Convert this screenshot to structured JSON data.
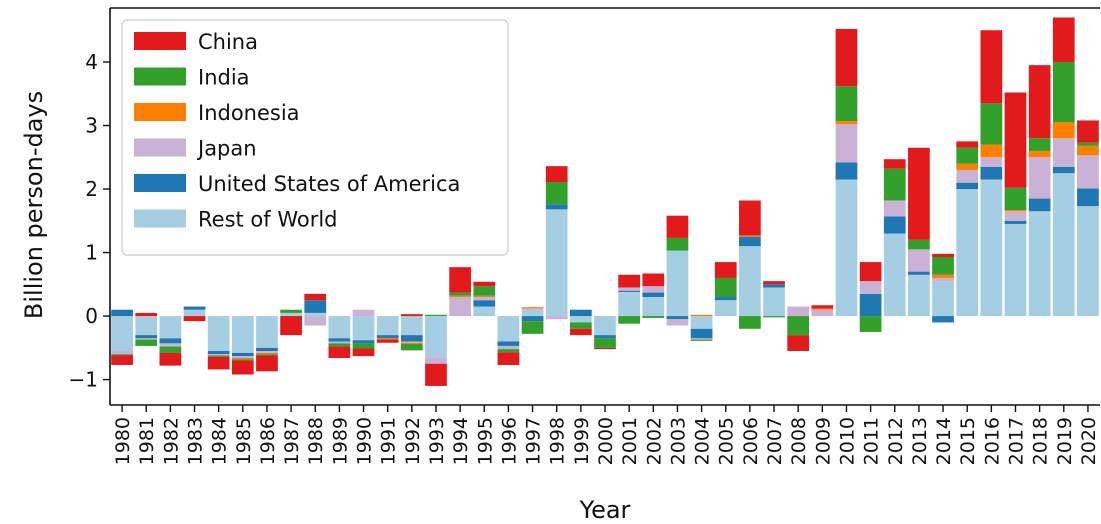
{
  "chart_data": {
    "type": "bar",
    "stacked": true,
    "diverging": true,
    "xlabel": "Year",
    "ylabel": "Billion person-days",
    "ylim": [
      -1.4,
      4.85
    ],
    "yticks": [
      -1,
      0,
      1,
      2,
      3,
      4
    ],
    "ytick_labels": [
      "−1",
      "0",
      "1",
      "2",
      "3",
      "4"
    ],
    "legend_position": "top-left",
    "categories": [
      "1980",
      "1981",
      "1982",
      "1983",
      "1984",
      "1985",
      "1986",
      "1987",
      "1988",
      "1989",
      "1990",
      "1991",
      "1992",
      "1993",
      "1994",
      "1995",
      "1996",
      "1997",
      "1998",
      "1999",
      "2000",
      "2001",
      "2002",
      "2003",
      "2004",
      "2005",
      "2006",
      "2007",
      "2008",
      "2009",
      "2010",
      "2011",
      "2012",
      "2013",
      "2014",
      "2015",
      "2016",
      "2017",
      "2018",
      "2019",
      "2020"
    ],
    "series": [
      {
        "name": "Rest of World",
        "color": "#a6cee3",
        "values": [
          -0.55,
          -0.3,
          -0.35,
          0.1,
          -0.55,
          -0.58,
          -0.5,
          0.05,
          0.05,
          -0.35,
          -0.38,
          -0.3,
          -0.3,
          -0.65,
          0.0,
          0.15,
          -0.4,
          0.1,
          1.68,
          -0.1,
          -0.3,
          0.38,
          0.3,
          1.03,
          -0.2,
          0.25,
          1.1,
          0.45,
          0.0,
          0.0,
          2.15,
          0.0,
          1.3,
          0.65,
          0.55,
          2.0,
          2.15,
          1.45,
          1.65,
          2.25,
          1.73
        ]
      },
      {
        "name": "United States of America",
        "color": "#1f78b4",
        "values": [
          0.1,
          -0.05,
          -0.08,
          0.05,
          -0.05,
          -0.05,
          -0.05,
          0.0,
          0.2,
          -0.05,
          -0.05,
          -0.05,
          -0.1,
          0.0,
          0.0,
          0.1,
          -0.07,
          -0.08,
          0.08,
          0.1,
          -0.05,
          0.02,
          0.07,
          -0.05,
          -0.15,
          0.05,
          0.15,
          0.05,
          0.0,
          0.0,
          0.27,
          0.35,
          0.27,
          0.05,
          -0.1,
          0.1,
          0.2,
          0.05,
          0.2,
          0.1,
          0.28
        ]
      },
      {
        "name": "Japan",
        "color": "#cab2d6",
        "values": [
          -0.05,
          -0.02,
          -0.05,
          0.0,
          -0.02,
          -0.03,
          -0.03,
          0.0,
          -0.15,
          -0.03,
          0.1,
          0.0,
          -0.02,
          -0.1,
          0.3,
          0.05,
          -0.05,
          0.02,
          -0.05,
          0.0,
          0.0,
          0.05,
          0.1,
          -0.1,
          -0.02,
          0.0,
          0.0,
          0.0,
          0.15,
          0.1,
          0.6,
          0.2,
          0.25,
          0.35,
          0.05,
          0.2,
          0.15,
          0.15,
          0.65,
          0.45,
          0.52
        ]
      },
      {
        "name": "Indonesia",
        "color": "#ff7f00",
        "values": [
          0.0,
          0.0,
          0.0,
          0.0,
          0.0,
          -0.02,
          -0.02,
          0.0,
          0.0,
          0.0,
          0.0,
          -0.02,
          -0.02,
          0.0,
          0.02,
          0.02,
          0.0,
          0.02,
          0.0,
          0.0,
          0.0,
          0.0,
          0.0,
          0.0,
          0.02,
          0.0,
          0.02,
          0.0,
          0.0,
          0.02,
          0.05,
          0.0,
          0.0,
          0.0,
          0.05,
          0.1,
          0.2,
          0.02,
          0.1,
          0.25,
          0.15
        ]
      },
      {
        "name": "India",
        "color": "#33a02c",
        "values": [
          -0.02,
          -0.1,
          -0.1,
          0.0,
          -0.02,
          -0.02,
          -0.02,
          0.05,
          0.0,
          -0.05,
          -0.08,
          0.0,
          -0.1,
          0.02,
          0.05,
          0.15,
          -0.05,
          -0.2,
          0.35,
          -0.1,
          -0.15,
          -0.12,
          -0.03,
          0.2,
          -0.02,
          0.3,
          -0.2,
          -0.02,
          -0.3,
          0.0,
          0.55,
          -0.25,
          0.5,
          0.15,
          0.28,
          0.25,
          0.65,
          0.35,
          0.2,
          0.95,
          0.05
        ]
      },
      {
        "name": "China",
        "color": "#e31a1c",
        "values": [
          -0.15,
          0.05,
          -0.2,
          -0.08,
          -0.2,
          -0.22,
          -0.25,
          -0.3,
          0.1,
          -0.18,
          -0.12,
          -0.05,
          0.03,
          -0.35,
          0.4,
          0.07,
          -0.2,
          0.0,
          0.25,
          -0.1,
          -0.02,
          0.2,
          0.2,
          0.35,
          0.0,
          0.25,
          0.55,
          0.05,
          -0.25,
          0.05,
          0.9,
          0.3,
          0.15,
          1.45,
          0.05,
          0.1,
          1.15,
          1.5,
          1.15,
          0.7,
          0.35
        ]
      }
    ]
  }
}
